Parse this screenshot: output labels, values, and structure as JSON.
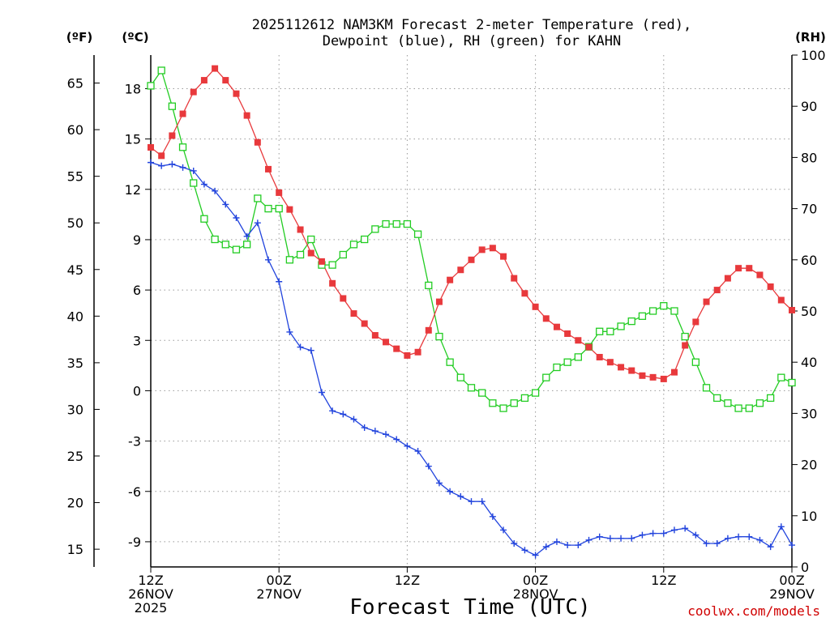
{
  "chart_data": {
    "type": "line",
    "title_line1": "2025112612 NAM3KM Forecast 2-meter Temperature (red),",
    "title_line2": "Dewpoint (blue), RH (green) for KAHN",
    "unit_left_f": "(ºF)",
    "unit_left_c": "(ºC)",
    "unit_right": "(RH)",
    "xlabel": "Forecast Time (UTC)",
    "source": "coolwx.com/models",
    "x_tick_labels": [
      [
        "12Z",
        "26NOV",
        "2025"
      ],
      [
        "00Z",
        "27NOV"
      ],
      [
        "12Z"
      ],
      [
        "00Z",
        "28NOV"
      ],
      [
        "12Z"
      ],
      [
        "00Z",
        "29NOV"
      ]
    ],
    "x_range_hours": [
      0,
      60
    ],
    "c_axis": {
      "min": -10.5,
      "max": 20,
      "ticks": [
        18,
        15,
        12,
        9,
        6,
        3,
        0,
        -3,
        -6,
        -9
      ]
    },
    "f_axis": {
      "ticks": [
        65,
        60,
        55,
        50,
        45,
        40,
        35,
        30,
        25,
        20,
        15
      ]
    },
    "rh_axis": {
      "min": 0,
      "max": 100,
      "ticks": [
        100,
        90,
        80,
        70,
        60,
        50,
        40,
        30,
        20,
        10,
        0
      ]
    },
    "colors": {
      "temperature": "#e8393c",
      "dewpoint": "#2244dd",
      "rh": "#22cc22"
    },
    "series": [
      {
        "name": "Temperature (°C)",
        "values": [
          14.5,
          14.0,
          15.2,
          16.5,
          17.8,
          18.5,
          19.2,
          18.5,
          17.7,
          16.4,
          14.8,
          13.2,
          11.8,
          10.8,
          9.6,
          8.2,
          7.7,
          6.4,
          5.5,
          4.6,
          4.0,
          3.3,
          2.9,
          2.5,
          2.1,
          2.3,
          3.6,
          5.3,
          6.6,
          7.2,
          7.8,
          8.4,
          8.5,
          8.0,
          6.7,
          5.8,
          5.0,
          4.3,
          3.8,
          3.4,
          3.0,
          2.6,
          2.0,
          1.7,
          1.4,
          1.2,
          0.9,
          0.8,
          0.7,
          1.1,
          2.7,
          4.1,
          5.3,
          6.0,
          6.7,
          7.3,
          7.3,
          6.9,
          6.2,
          5.4,
          4.8
        ]
      },
      {
        "name": "Dewpoint (°C)",
        "values": [
          13.6,
          13.4,
          13.5,
          13.3,
          13.1,
          12.3,
          11.9,
          11.1,
          10.3,
          9.2,
          10.0,
          7.8,
          6.5,
          3.5,
          2.6,
          2.4,
          -0.1,
          -1.2,
          -1.4,
          -1.7,
          -2.2,
          -2.4,
          -2.6,
          -2.9,
          -3.3,
          -3.6,
          -4.5,
          -5.5,
          -6.0,
          -6.3,
          -6.6,
          -6.6,
          -7.5,
          -8.3,
          -9.1,
          -9.5,
          -9.8,
          -9.3,
          -9.0,
          -9.2,
          -9.2,
          -8.9,
          -8.7,
          -8.8,
          -8.8,
          -8.8,
          -8.6,
          -8.5,
          -8.5,
          -8.3,
          -8.2,
          -8.6,
          -9.1,
          -9.1,
          -8.8,
          -8.7,
          -8.7,
          -8.9,
          -9.3,
          -8.1,
          -9.2
        ]
      },
      {
        "name": "RH (%)",
        "values": [
          94,
          97,
          90,
          82,
          75,
          68,
          64,
          63,
          62,
          63,
          72,
          70,
          70,
          60,
          61,
          64,
          59,
          59,
          61,
          63,
          64,
          66,
          67,
          67,
          67,
          65,
          55,
          45,
          40,
          37,
          35,
          34,
          32,
          31,
          32,
          33,
          34,
          37,
          39,
          40,
          41,
          43,
          46,
          46,
          47,
          48,
          49,
          50,
          51,
          50,
          45,
          40,
          35,
          33,
          32,
          31,
          31,
          32,
          33,
          37,
          36
        ]
      }
    ]
  }
}
